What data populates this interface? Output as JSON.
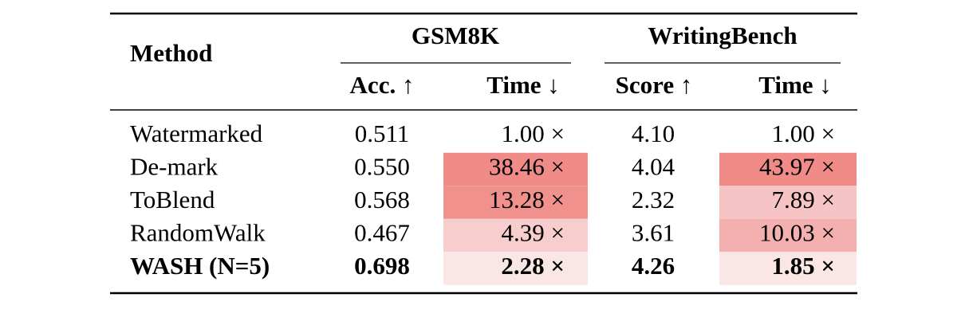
{
  "table": {
    "header": {
      "method": "Method",
      "groups": [
        {
          "title": "GSM8K",
          "columns": [
            "Acc. ↑",
            "Time ↓"
          ]
        },
        {
          "title": "WritingBench",
          "columns": [
            "Score ↑",
            "Time ↓"
          ]
        }
      ]
    },
    "rows": [
      {
        "cells": [
          "Watermarked",
          "0.511",
          "1.00 ×",
          "4.10",
          "1.00 ×"
        ],
        "shades": [
          null,
          null,
          null,
          null,
          null
        ],
        "bold": false
      },
      {
        "cells": [
          "De-mark",
          "0.550",
          "38.46 ×",
          "4.04",
          "43.97 ×"
        ],
        "shades": [
          null,
          null,
          "#f08b88",
          null,
          "#f08b88"
        ],
        "bold": false
      },
      {
        "cells": [
          "ToBlend",
          "0.568",
          "13.28 ×",
          "2.32",
          "7.89 ×"
        ],
        "shades": [
          null,
          null,
          "#f0918e",
          null,
          "#f6c4c4"
        ],
        "bold": false
      },
      {
        "cells": [
          "RandomWalk",
          "0.467",
          "4.39 ×",
          "3.61",
          "10.03 ×"
        ],
        "shades": [
          null,
          null,
          "#f7cdcd",
          null,
          "#f4afaf"
        ],
        "bold": false
      },
      {
        "cells": [
          "WASH (N=5)",
          "0.698",
          "2.28 ×",
          "4.26",
          "1.85 ×"
        ],
        "shades": [
          null,
          null,
          "#fbe6e6",
          null,
          "#fbe6e6"
        ],
        "bold": true
      }
    ]
  }
}
